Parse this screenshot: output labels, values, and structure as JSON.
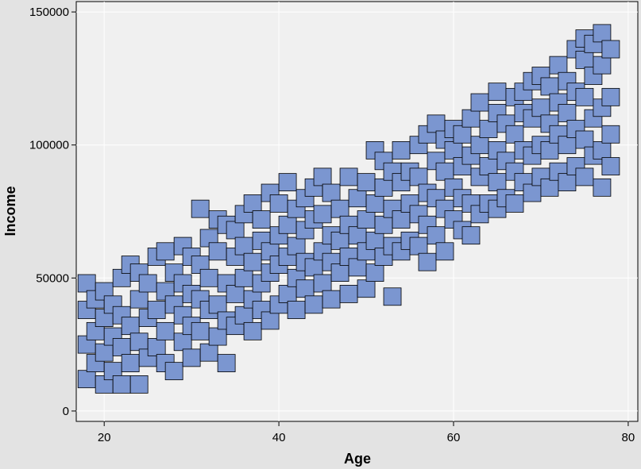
{
  "chart_data": {
    "type": "scatter",
    "x_label": "Age",
    "y_label": "Income",
    "color": "#7b96d0",
    "edge_color": "#000000",
    "grid": true,
    "xlim": [
      16.8,
      81.1
    ],
    "ylim": [
      -3900,
      153900
    ],
    "xticks": [
      20,
      40,
      60,
      80
    ],
    "yticks": [
      0,
      50000,
      100000,
      150000
    ],
    "x": [
      18,
      18,
      18,
      18,
      19,
      19,
      19,
      20,
      20,
      20,
      20,
      21,
      21,
      21,
      22,
      22,
      22,
      22,
      23,
      23,
      23,
      24,
      24,
      24,
      24,
      25,
      25,
      25,
      26,
      26,
      26,
      27,
      27,
      27,
      27,
      28,
      28,
      28,
      29,
      29,
      29,
      29,
      30,
      30,
      30,
      30,
      31,
      31,
      31,
      31,
      32,
      32,
      32,
      32,
      33,
      33,
      33,
      33,
      34,
      34,
      34,
      34,
      35,
      35,
      35,
      35,
      36,
      36,
      36,
      36,
      37,
      37,
      37,
      37,
      38,
      38,
      38,
      38,
      39,
      39,
      39,
      39,
      40,
      40,
      40,
      40,
      41,
      41,
      41,
      41,
      42,
      42,
      42,
      42,
      43,
      43,
      43,
      43,
      44,
      44,
      44,
      44,
      45,
      45,
      45,
      45,
      46,
      46,
      46,
      46,
      47,
      47,
      47,
      48,
      48,
      48,
      48,
      49,
      49,
      49,
      50,
      50,
      50,
      50,
      51,
      51,
      51,
      51,
      52,
      52,
      52,
      52,
      53,
      53,
      53,
      53,
      54,
      54,
      54,
      54,
      55,
      55,
      55,
      56,
      56,
      56,
      56,
      57,
      57,
      57,
      57,
      58,
      58,
      58,
      58,
      59,
      59,
      59,
      59,
      60,
      60,
      60,
      60,
      61,
      61,
      61,
      61,
      62,
      62,
      62,
      62,
      63,
      63,
      63,
      63,
      64,
      64,
      64,
      65,
      65,
      65,
      65,
      65,
      66,
      66,
      66,
      67,
      67,
      67,
      67,
      68,
      68,
      68,
      68,
      69,
      69,
      69,
      69,
      70,
      70,
      70,
      70,
      71,
      71,
      71,
      71,
      72,
      72,
      72,
      72,
      73,
      73,
      73,
      73,
      74,
      74,
      74,
      74,
      75,
      75,
      75,
      75,
      75,
      76,
      76,
      76,
      76,
      77,
      77,
      77,
      77,
      77,
      78,
      78,
      78,
      78
    ],
    "y": [
      12000,
      25000,
      38000,
      48000,
      18000,
      30000,
      42000,
      10000,
      22000,
      35000,
      45000,
      15000,
      28000,
      40000,
      10000,
      24000,
      36000,
      50000,
      18000,
      32000,
      55000,
      10000,
      26000,
      42000,
      52000,
      20000,
      35000,
      48000,
      24000,
      38000,
      58000,
      18000,
      30000,
      45000,
      60000,
      15000,
      40000,
      52000,
      26000,
      36000,
      48000,
      62000,
      20000,
      32000,
      44000,
      58000,
      30000,
      42000,
      55000,
      76000,
      22000,
      38000,
      50000,
      65000,
      28000,
      40000,
      60000,
      72000,
      18000,
      34000,
      48000,
      70000,
      32000,
      44000,
      58000,
      68000,
      36000,
      50000,
      62000,
      74000,
      30000,
      42000,
      56000,
      78000,
      38000,
      48000,
      64000,
      72000,
      34000,
      52000,
      60000,
      82000,
      40000,
      55000,
      66000,
      78000,
      44000,
      58000,
      70000,
      86000,
      38000,
      50000,
      62000,
      76000,
      46000,
      56000,
      68000,
      80000,
      40000,
      54000,
      72000,
      84000,
      48000,
      60000,
      74000,
      88000,
      42000,
      56000,
      66000,
      82000,
      52000,
      64000,
      76000,
      44000,
      58000,
      70000,
      88000,
      54000,
      66000,
      80000,
      46000,
      60000,
      72000,
      86000,
      52000,
      64000,
      78000,
      98000,
      58000,
      70000,
      84000,
      94000,
      43000,
      62000,
      76000,
      90000,
      60000,
      72000,
      86000,
      98000,
      64000,
      78000,
      90000,
      62000,
      74000,
      88000,
      100000,
      56000,
      70000,
      82000,
      104000,
      66000,
      80000,
      94000,
      108000,
      60000,
      76000,
      90000,
      102000,
      72000,
      84000,
      98000,
      106000,
      68000,
      80000,
      92000,
      104000,
      66000,
      78000,
      96000,
      110000,
      74000,
      88000,
      100000,
      116000,
      78000,
      92000,
      106000,
      76000,
      86000,
      98000,
      112000,
      120000,
      80000,
      94000,
      108000,
      78000,
      90000,
      104000,
      118000,
      86000,
      98000,
      112000,
      120000,
      82000,
      96000,
      110000,
      124000,
      88000,
      100000,
      114000,
      126000,
      84000,
      98000,
      108000,
      122000,
      90000,
      104000,
      116000,
      130000,
      86000,
      100000,
      112000,
      124000,
      92000,
      106000,
      120000,
      136000,
      88000,
      102000,
      118000,
      132000,
      140000,
      96000,
      110000,
      126000,
      138000,
      84000,
      98000,
      114000,
      130000,
      142000,
      92000,
      104000,
      118000,
      136000
    ]
  }
}
